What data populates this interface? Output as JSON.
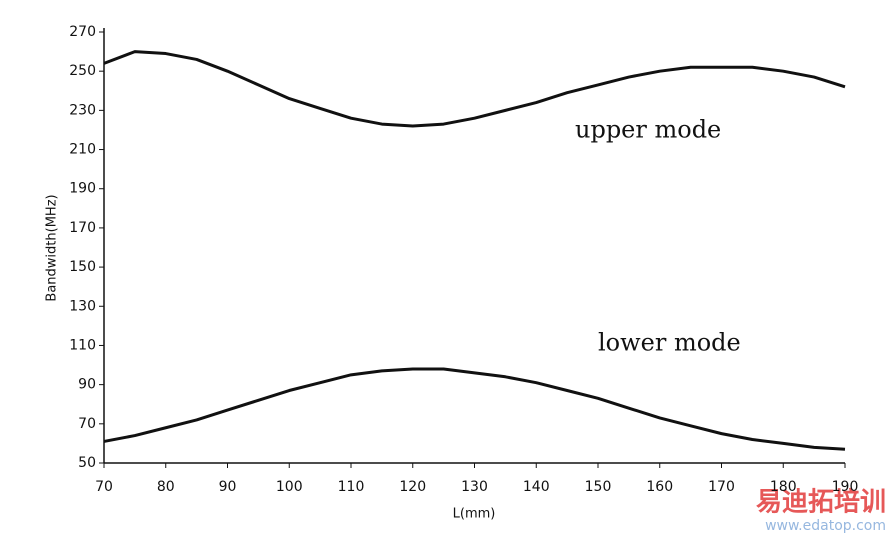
{
  "chart_data": {
    "type": "line",
    "xlabel": "L(mm)",
    "ylabel": "Bandwidth(MHz)",
    "x": [
      70,
      75,
      80,
      85,
      90,
      95,
      100,
      105,
      110,
      115,
      120,
      125,
      130,
      135,
      140,
      145,
      150,
      155,
      160,
      165,
      170,
      175,
      180,
      185,
      190
    ],
    "series": [
      {
        "name": "upper mode",
        "color": "#111111",
        "values": [
          254,
          260,
          259,
          256,
          250,
          243,
          236,
          231,
          226,
          223,
          222,
          223,
          226,
          230,
          234,
          239,
          243,
          247,
          250,
          252,
          252,
          252,
          250,
          247,
          242
        ]
      },
      {
        "name": "lower mode",
        "color": "#111111",
        "values": [
          61,
          64,
          68,
          72,
          77,
          82,
          87,
          91,
          95,
          97,
          98,
          98,
          96,
          94,
          91,
          87,
          83,
          78,
          73,
          69,
          65,
          62,
          60,
          58,
          57
        ]
      }
    ],
    "xlim": [
      70,
      190
    ],
    "ylim": [
      50,
      270
    ],
    "xticks": [
      70,
      80,
      90,
      100,
      110,
      120,
      130,
      140,
      150,
      160,
      170,
      180,
      190
    ],
    "yticks": [
      50,
      70,
      90,
      110,
      130,
      150,
      170,
      190,
      210,
      230,
      250,
      270
    ],
    "watermarks": [
      "易迪拓培训",
      "www.edatop.com"
    ]
  }
}
